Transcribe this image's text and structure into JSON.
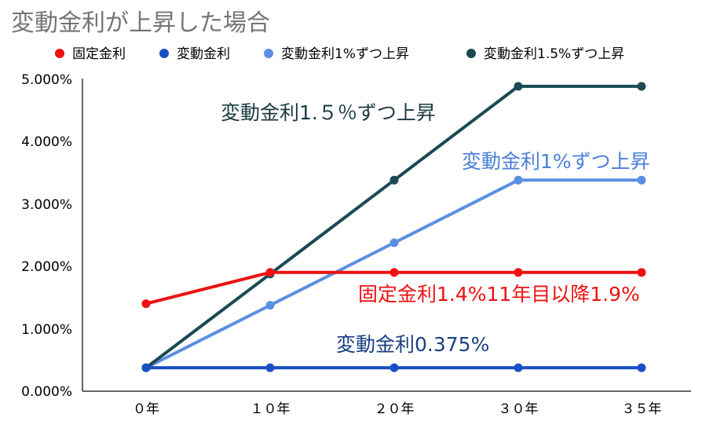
{
  "chart_data": {
    "type": "line",
    "title": "変動金利が上昇した場合",
    "xlabel": "",
    "ylabel": "",
    "categories": [
      "０年",
      "１０年",
      "２０年",
      "３０年",
      "３５年"
    ],
    "y_ticks": [
      "0.000%",
      "1.000%",
      "2.000%",
      "3.000%",
      "4.000%",
      "5.000%"
    ],
    "ylim": [
      0,
      5
    ],
    "legend_position": "top",
    "grid": false,
    "series": [
      {
        "name": "固定金利",
        "color": "#ee1111",
        "values": [
          1.4,
          1.9,
          1.9,
          1.9,
          1.9
        ]
      },
      {
        "name": "変動金利",
        "color": "#1a4fc4",
        "values": [
          0.375,
          0.375,
          0.375,
          0.375,
          0.375
        ]
      },
      {
        "name": "変動金利1%ずつ上昇",
        "color": "#5b8fe3",
        "values": [
          0.375,
          1.375,
          2.375,
          3.375,
          3.375
        ]
      },
      {
        "name": "変動金利1.5%ずつ上昇",
        "color": "#1a4a52",
        "values": [
          0.375,
          1.875,
          3.375,
          4.875,
          4.875
        ]
      }
    ],
    "annotations": [
      {
        "text": "変動金利1.５％ずつ上昇",
        "color": "#1a3a40"
      },
      {
        "text": "変動金利1%ずつ上昇",
        "color": "#4a7fd8"
      },
      {
        "text": "固定金利1.4%11年目以降1.9%",
        "color": "#ee1111"
      },
      {
        "text": "変動金利0.375%",
        "color": "#1a3f80"
      }
    ]
  }
}
